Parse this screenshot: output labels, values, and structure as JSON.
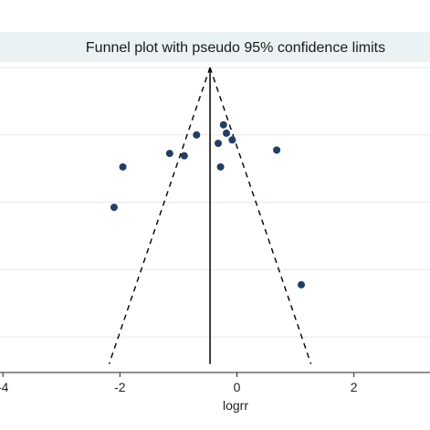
{
  "chart_data": {
    "type": "scatter",
    "title": "Funnel plot with pseudo 95% confidence limits",
    "xlabel": "logrr",
    "ylabel": "",
    "x_ticks": [
      -4,
      -2,
      0,
      2
    ],
    "x_tick_labels": [
      "-4",
      "-2",
      "0",
      "2"
    ],
    "xlim": [
      -4.05,
      3.3
    ],
    "ylim": [
      0.9,
      0.0
    ],
    "y_gridlines": [
      0.0,
      0.2,
      0.4,
      0.6,
      0.8
    ],
    "pooled_estimate": -0.46,
    "ci_limits": {
      "z": 1.96,
      "style": "dashed"
    },
    "grid": true,
    "points": [
      {
        "x": -0.23,
        "y": 0.17
      },
      {
        "x": -0.18,
        "y": 0.195
      },
      {
        "x": -0.69,
        "y": 0.2
      },
      {
        "x": -0.08,
        "y": 0.215
      },
      {
        "x": -0.32,
        "y": 0.225
      },
      {
        "x": 0.68,
        "y": 0.245
      },
      {
        "x": -1.15,
        "y": 0.255
      },
      {
        "x": -0.9,
        "y": 0.262
      },
      {
        "x": -1.95,
        "y": 0.295
      },
      {
        "x": -0.28,
        "y": 0.295
      },
      {
        "x": -2.1,
        "y": 0.415
      },
      {
        "x": 1.1,
        "y": 0.645
      }
    ],
    "colors": {
      "marker": "#1f3f66",
      "grid": "#e3e8ee",
      "line": "#000000",
      "title_band": "#eaf2f3"
    }
  }
}
